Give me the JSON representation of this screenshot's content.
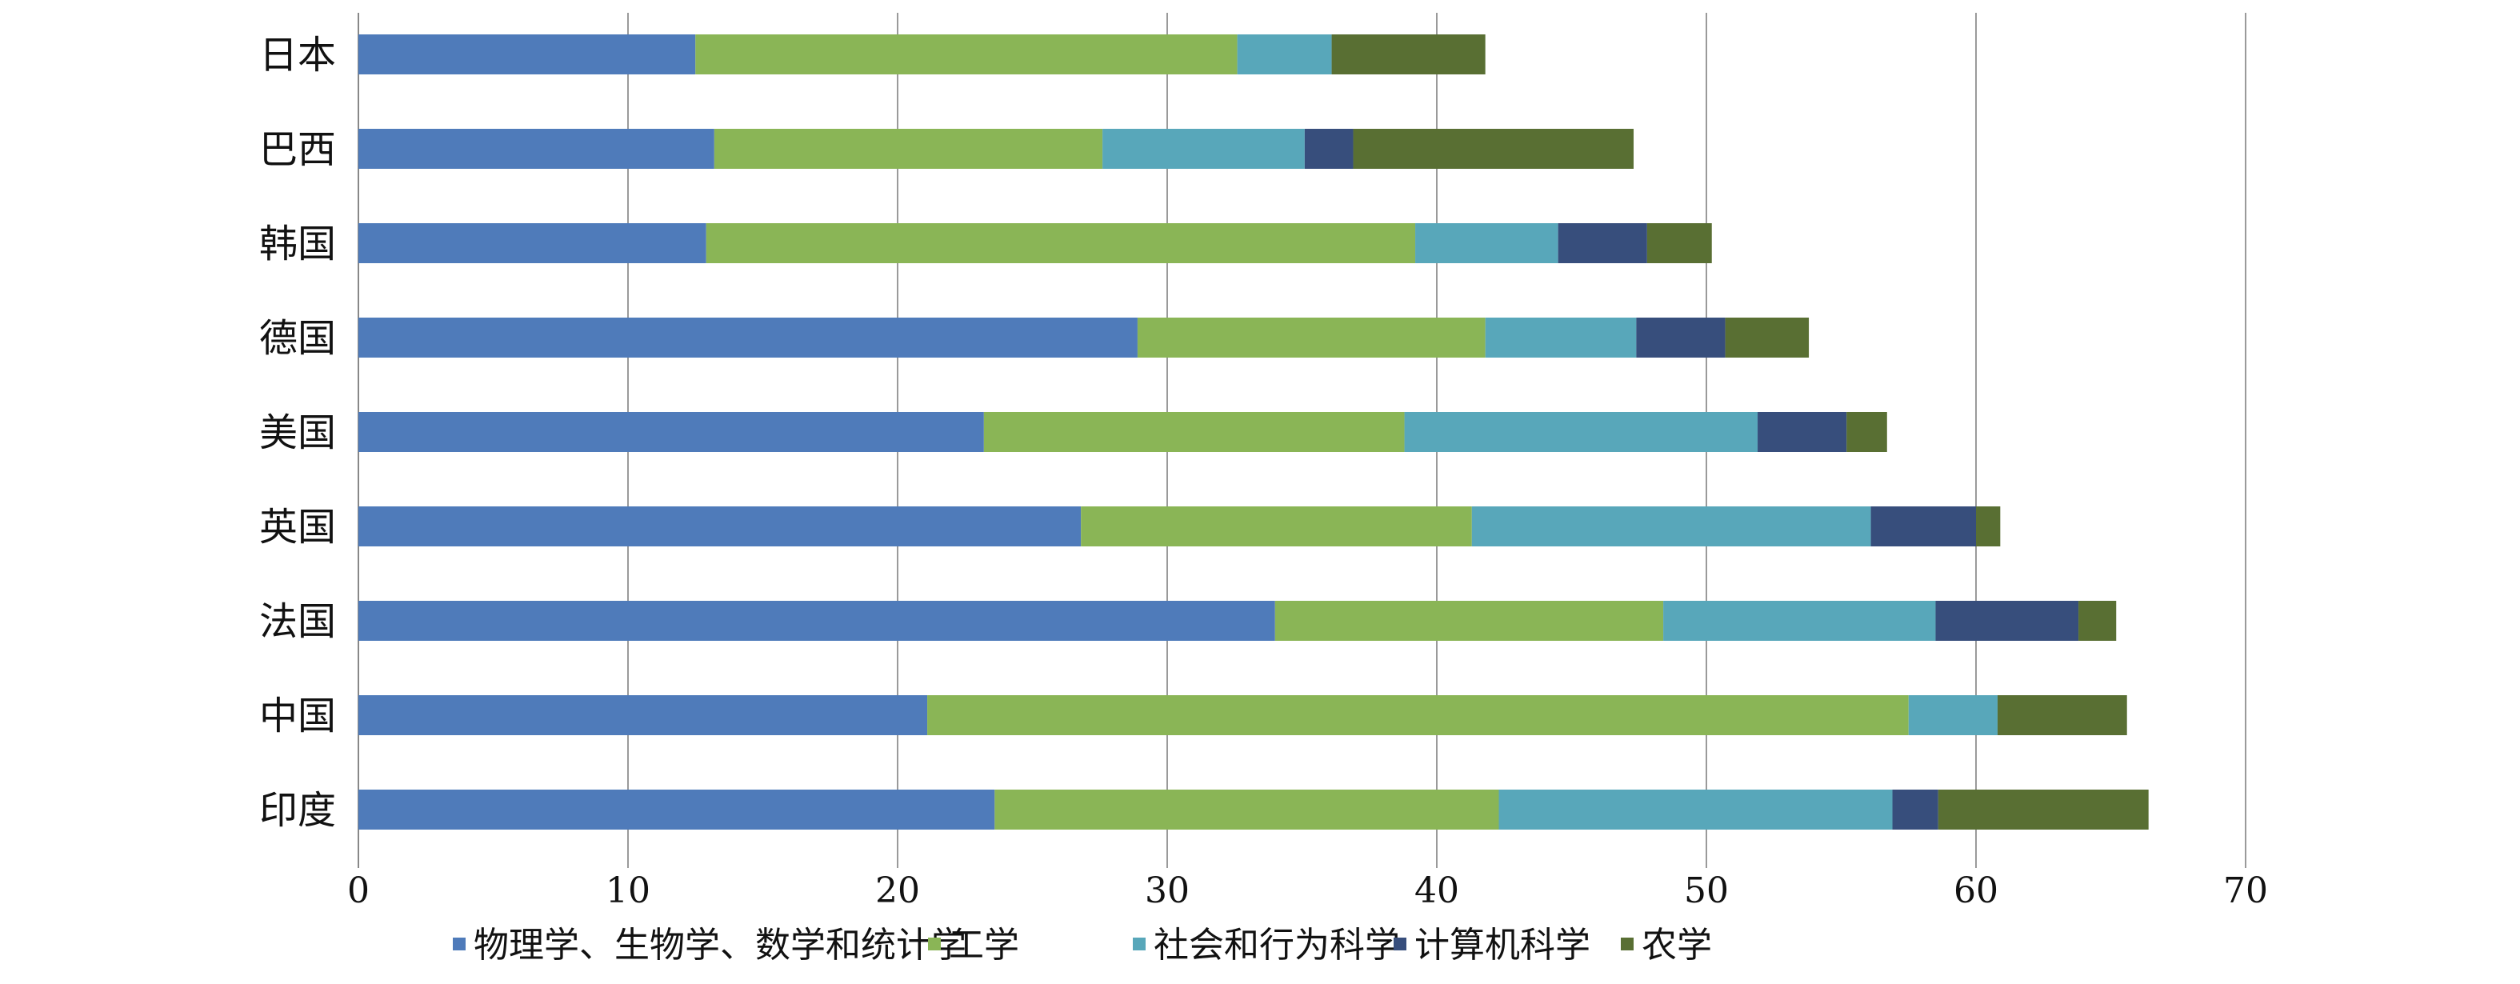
{
  "chart_data": {
    "type": "bar",
    "orientation": "horizontal",
    "stacked": true,
    "title": "",
    "xlabel": "",
    "ylabel": "",
    "xlim": [
      0,
      70
    ],
    "xticks": [
      "0",
      "10",
      "20",
      "30",
      "40",
      "50",
      "60",
      "70"
    ],
    "grid": "vertical",
    "legend_position": "bottom",
    "categories": [
      "日本",
      "巴西",
      "韩国",
      "德国",
      "美国",
      "英国",
      "法国",
      "中国",
      "印度"
    ],
    "series": [
      {
        "name": "物理学、生物学、数学和统计学",
        "color": "#4F7BBA",
        "values": [
          12.5,
          13.2,
          12.9,
          28.9,
          23.2,
          26.8,
          34.0,
          21.1,
          23.6
        ]
      },
      {
        "name": "工学",
        "color": "#8AB556",
        "values": [
          20.1,
          14.4,
          26.3,
          12.9,
          15.6,
          14.5,
          14.4,
          36.4,
          18.7
        ]
      },
      {
        "name": "社会和行为科学",
        "color": "#58A7BA",
        "values": [
          3.5,
          7.5,
          5.3,
          5.6,
          13.1,
          14.8,
          10.1,
          3.3,
          14.6
        ]
      },
      {
        "name": "计算机科学",
        "color": "#374E7C",
        "values": [
          0,
          1.8,
          3.3,
          3.3,
          3.3,
          3.9,
          5.3,
          0,
          1.7
        ]
      },
      {
        "name": "农学",
        "color": "#596F33",
        "values": [
          5.7,
          10.4,
          2.4,
          3.1,
          1.5,
          0.9,
          1.4,
          4.8,
          7.8
        ]
      }
    ]
  }
}
